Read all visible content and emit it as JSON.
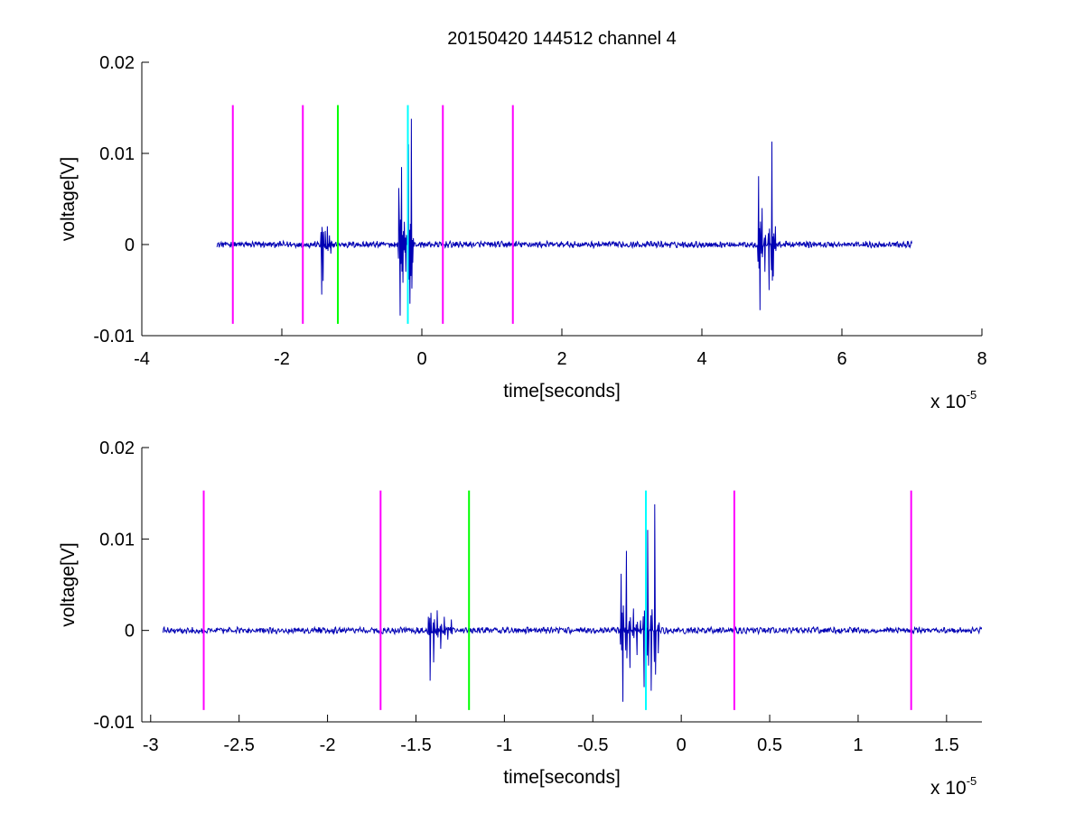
{
  "chart_data": [
    {
      "type": "line",
      "title": "20150420 144512 channel 4",
      "xlabel": "time[seconds]",
      "ylabel": "voltage[V]",
      "xlim": [
        -4e-05,
        8e-05
      ],
      "ylim": [
        -0.01,
        0.02
      ],
      "x_ticks": [
        -4e-05,
        -2e-05,
        0,
        2e-05,
        4e-05,
        6e-05,
        8e-05
      ],
      "x_tick_labels": [
        "-4",
        "-2",
        "0",
        "2",
        "4",
        "6",
        "8"
      ],
      "y_ticks": [
        -0.01,
        0,
        0.01,
        0.02
      ],
      "y_tick_labels": [
        "-0.01",
        "0",
        "0.01",
        "0.02"
      ],
      "x_multiplier": {
        "base": "x 10",
        "exponent": "-5"
      },
      "grid": false,
      "series": [
        {
          "color": "#0000b4",
          "x_range": [
            -2.93e-05,
            7e-05
          ],
          "baseline": 0,
          "noise_amplitude": 0.0004,
          "bursts": [
            {
              "start": -1.45e-05,
              "peaks": [
                [
                  -1.43e-05,
                  -0.0055
                ],
                [
                  -1.41e-05,
                  -0.004
                ],
                [
                  -1.38e-05,
                  0.0015
                ],
                [
                  -1.35e-05,
                  0.002
                ],
                [
                  -1.32e-05,
                  0.001
                ],
                [
                  -1.3e-05,
                  -0.001
                ]
              ]
            },
            {
              "start": -3.3e-06,
              "peaks": [
                [
                  -3.3e-06,
                  0.0062
                ],
                [
                  -3.1e-06,
                  -0.0078
                ],
                [
                  -2.9e-06,
                  0.0085
                ],
                [
                  -2.7e-06,
                  -0.0042
                ],
                [
                  -2.5e-06,
                  0.0025
                ],
                [
                  -2.3e-06,
                  -0.003
                ],
                [
                  -1.9e-06,
                  0.011
                ],
                [
                  -1.7e-06,
                  -0.0065
                ],
                [
                  -1.5e-06,
                  0.0138
                ],
                [
                  -1.3e-06,
                  -0.002
                ]
              ]
            },
            {
              "start": 4.8e-05,
              "peaks": [
                [
                  4.81e-05,
                  0.0075
                ],
                [
                  4.83e-05,
                  -0.0072
                ],
                [
                  4.86e-05,
                  0.004
                ],
                [
                  4.9e-05,
                  -0.003
                ],
                [
                  4.96e-05,
                  -0.005
                ],
                [
                  5e-05,
                  0.0113
                ],
                [
                  5.02e-05,
                  -0.0035
                ],
                [
                  5.05e-05,
                  0.002
                ]
              ]
            }
          ]
        }
      ],
      "markers": [
        {
          "x": -2.7e-05,
          "color": "#ff00ff",
          "y_range": [
            -0.0087,
            0.0153
          ]
        },
        {
          "x": -1.7e-05,
          "color": "#ff00ff",
          "y_range": [
            -0.0087,
            0.0153
          ]
        },
        {
          "x": -1.2e-05,
          "color": "#00ff00",
          "y_range": [
            -0.0087,
            0.0153
          ]
        },
        {
          "x": -2e-06,
          "color": "#00ffff",
          "y_range": [
            -0.0087,
            0.0153
          ]
        },
        {
          "x": 3e-06,
          "color": "#ff00ff",
          "y_range": [
            -0.0087,
            0.0153
          ]
        },
        {
          "x": 1.3e-05,
          "color": "#ff00ff",
          "y_range": [
            -0.0087,
            0.0153
          ]
        }
      ]
    },
    {
      "type": "line",
      "title": "",
      "xlabel": "time[seconds]",
      "ylabel": "voltage[V]",
      "xlim": [
        -3.05e-05,
        1.7e-05
      ],
      "ylim": [
        -0.01,
        0.02
      ],
      "x_ticks": [
        -3e-05,
        -2.5e-05,
        -2e-05,
        -1.5e-05,
        -1e-05,
        -5e-06,
        0,
        5e-06,
        1e-05,
        1.5e-05
      ],
      "x_tick_labels": [
        "-3",
        "-2.5",
        "-2",
        "-1.5",
        "-1",
        "-0.5",
        "0",
        "0.5",
        "1",
        "1.5"
      ],
      "y_ticks": [
        -0.01,
        0,
        0.01,
        0.02
      ],
      "y_tick_labels": [
        "-0.01",
        "0",
        "0.01",
        "0.02"
      ],
      "x_multiplier": {
        "base": "x 10",
        "exponent": "-5"
      },
      "grid": false,
      "series": [
        {
          "color": "#0000b4",
          "x_range": [
            -2.93e-05,
            1.7e-05
          ],
          "baseline": 0,
          "noise_amplitude": 0.0004,
          "bursts": [
            {
              "start": -1.45e-05,
              "peaks": [
                [
                  -1.43e-05,
                  0.0015
                ],
                [
                  -1.42e-05,
                  -0.0055
                ],
                [
                  -1.4e-05,
                  -0.0035
                ],
                [
                  -1.38e-05,
                  0.0022
                ],
                [
                  -1.36e-05,
                  -0.002
                ],
                [
                  -1.34e-05,
                  0.0015
                ],
                [
                  -1.32e-05,
                  -0.001
                ],
                [
                  -1.3e-05,
                  0.0012
                ]
              ]
            },
            {
              "start": -3.5e-06,
              "peaks": [
                [
                  -3.4e-06,
                  0.0062
                ],
                [
                  -3.3e-06,
                  -0.0078
                ],
                [
                  -3.1e-06,
                  0.0087
                ],
                [
                  -2.9e-06,
                  -0.0041
                ],
                [
                  -2.7e-06,
                  0.0024
                ],
                [
                  -2.5e-06,
                  -0.0027
                ],
                [
                  -2.3e-06,
                  0.0011
                ],
                [
                  -2.1e-06,
                  -0.0062
                ],
                [
                  -1.9e-06,
                  0.011
                ],
                [
                  -1.7e-06,
                  -0.0066
                ],
                [
                  -1.5e-06,
                  0.0138
                ],
                [
                  -1.3e-06,
                  -0.0025
                ]
              ]
            }
          ]
        }
      ],
      "markers": [
        {
          "x": -2.7e-05,
          "color": "#ff00ff",
          "y_range": [
            -0.0087,
            0.0153
          ]
        },
        {
          "x": -1.7e-05,
          "color": "#ff00ff",
          "y_range": [
            -0.0087,
            0.0153
          ]
        },
        {
          "x": -1.2e-05,
          "color": "#00ff00",
          "y_range": [
            -0.0087,
            0.0153
          ]
        },
        {
          "x": -2e-06,
          "color": "#00ffff",
          "y_range": [
            -0.0087,
            0.0153
          ]
        },
        {
          "x": 3e-06,
          "color": "#ff00ff",
          "y_range": [
            -0.0087,
            0.0153
          ]
        },
        {
          "x": 1.3e-05,
          "color": "#ff00ff",
          "y_range": [
            -0.0087,
            0.0153
          ]
        }
      ]
    }
  ]
}
